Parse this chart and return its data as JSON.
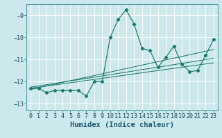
{
  "title": "",
  "xlabel": "Humidex (Indice chaleur)",
  "ylabel": "",
  "bg_color": "#cde8ec",
  "grid_color": "#ffffff",
  "line_color": "#1a7a6e",
  "xlim": [
    -0.5,
    23.5
  ],
  "ylim": [
    -13.3,
    -8.5
  ],
  "yticks": [
    -13,
    -12,
    -11,
    -10,
    -9
  ],
  "xticks": [
    0,
    1,
    2,
    3,
    4,
    5,
    6,
    7,
    8,
    9,
    10,
    11,
    12,
    13,
    14,
    15,
    16,
    17,
    18,
    19,
    20,
    21,
    22,
    23
  ],
  "main_x": [
    0,
    1,
    2,
    3,
    4,
    5,
    6,
    7,
    8,
    9,
    10,
    11,
    12,
    13,
    14,
    15,
    16,
    17,
    18,
    19,
    20,
    21,
    22,
    23
  ],
  "main_y": [
    -12.3,
    -12.3,
    -12.5,
    -12.4,
    -12.4,
    -12.4,
    -12.4,
    -12.65,
    -12.0,
    -12.0,
    -10.0,
    -9.2,
    -8.75,
    -9.4,
    -10.5,
    -10.6,
    -11.35,
    -10.9,
    -10.4,
    -11.2,
    -11.55,
    -11.5,
    -10.8,
    -10.1
  ],
  "trend_lines": [
    {
      "x": [
        0,
        23
      ],
      "y": [
        -12.35,
        -10.55
      ]
    },
    {
      "x": [
        0,
        23
      ],
      "y": [
        -12.3,
        -11.15
      ]
    },
    {
      "x": [
        0,
        23
      ],
      "y": [
        -12.25,
        -10.95
      ]
    }
  ],
  "xlabel_fontsize": 7.5,
  "tick_fontsize": 6.0
}
